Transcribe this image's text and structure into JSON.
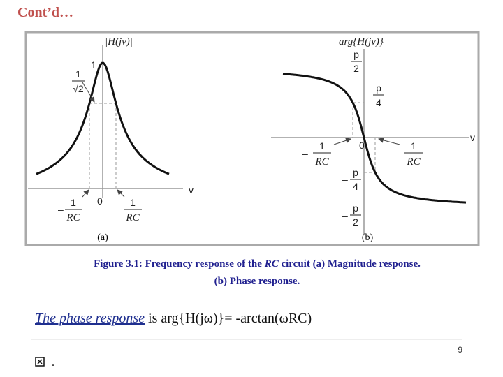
{
  "header": {
    "title": "Cont’d…"
  },
  "figure": {
    "magnitude": {
      "y_label": "|H(jv)|",
      "x_label": "v",
      "peak": "1",
      "half_power": {
        "num": "1",
        "den": "√2"
      },
      "origin": "0",
      "neg_cutoff": {
        "sign": "–",
        "num": "1",
        "den": "RC"
      },
      "pos_cutoff": {
        "num": "1",
        "den": "RC"
      },
      "panel": "(a)"
    },
    "phase": {
      "y_label": "arg{H(jv)}",
      "x_label": "v",
      "origin": "0",
      "top": {
        "num": "p",
        "den": "2"
      },
      "quarter": {
        "num": "p",
        "den": "4"
      },
      "neg_quarter": {
        "sign": "–",
        "num": "p",
        "den": "4"
      },
      "bottom": {
        "sign": "–",
        "num": "p",
        "den": "2"
      },
      "neg_cutoff": {
        "sign": "–",
        "num": "1",
        "den": "RC"
      },
      "pos_cutoff": {
        "num": "1",
        "den": "RC"
      },
      "panel": "(b)"
    }
  },
  "caption": {
    "prefix": "Figure 3.1: Frequency response of the",
    "emphasis": "RC",
    "suffix": "circuit (a) Magnitude response.",
    "line2": "(b) Phase response."
  },
  "body": {
    "term": "The phase response",
    "text": "is arg{H(jω)}= -arctan(ωRC)"
  },
  "footer": {
    "page_number": "9",
    "bullet": "."
  }
}
